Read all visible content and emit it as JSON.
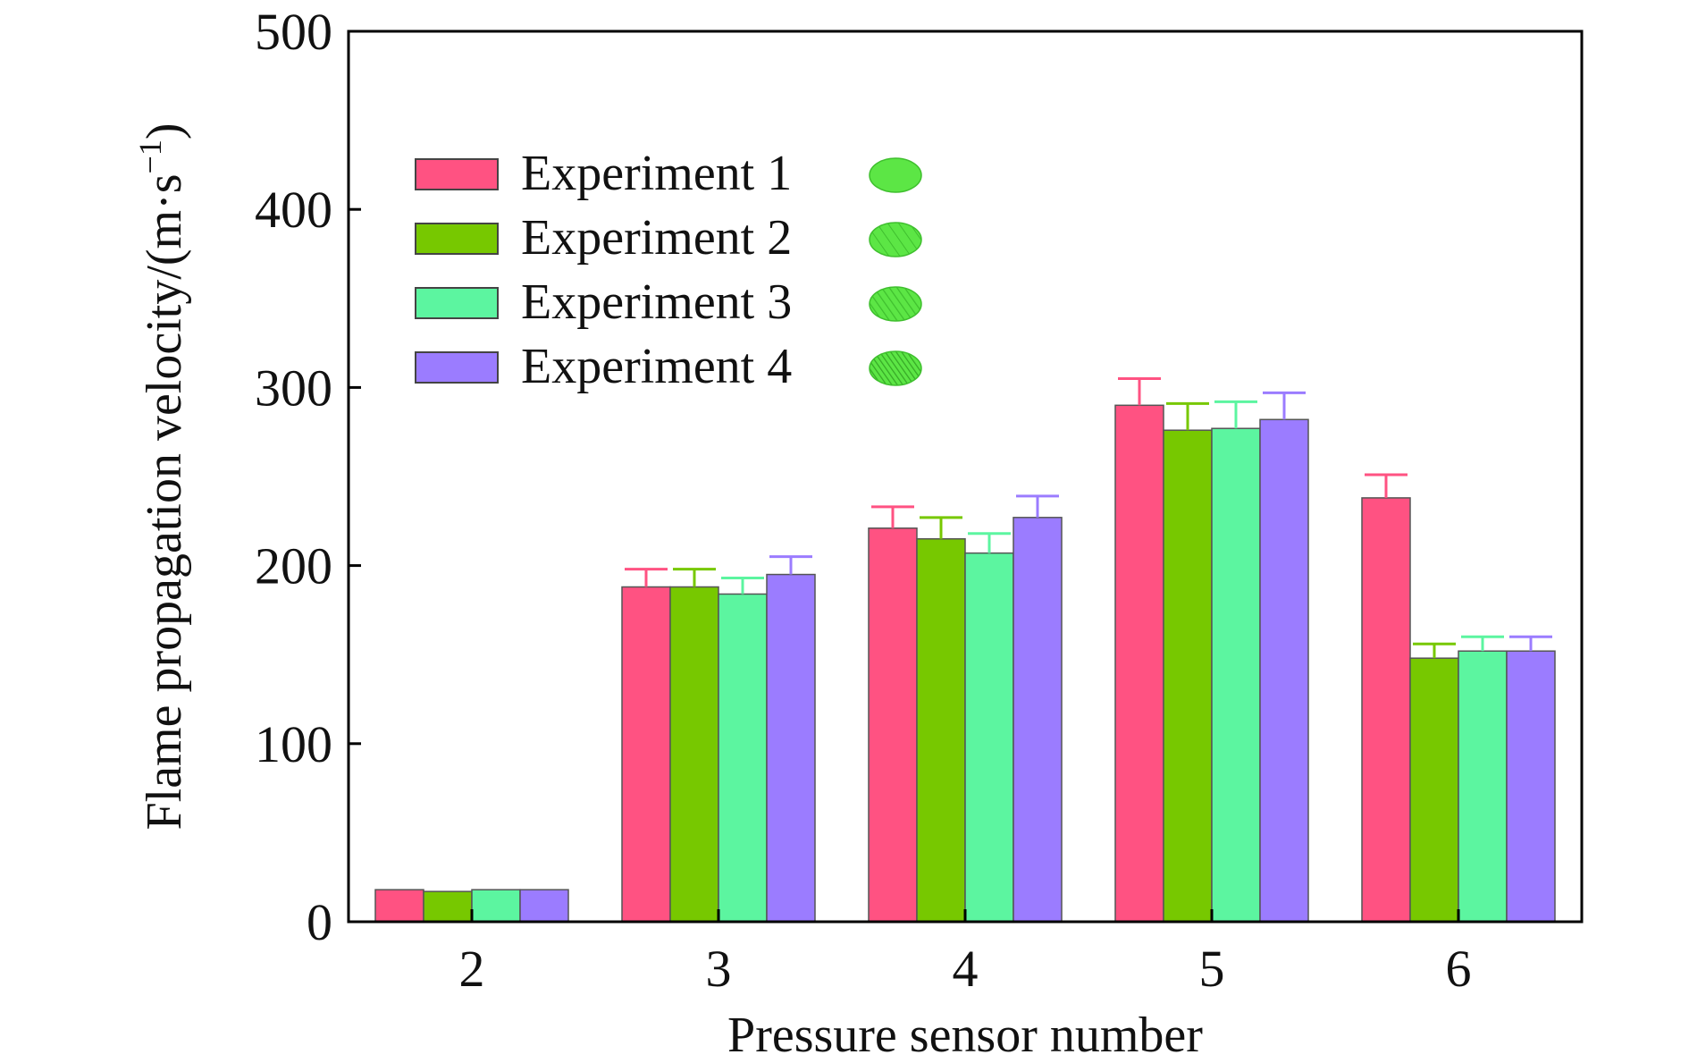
{
  "chart_data": {
    "type": "bar",
    "categories": [
      "2",
      "3",
      "4",
      "5",
      "6"
    ],
    "xlabel": "Pressure sensor number",
    "ylabel": "Flame propagation velocity/(m·s",
    "ylabel_superscript": "−1",
    "ylabel_suffix": ")",
    "ylim": [
      0,
      500
    ],
    "yticks": [
      "0",
      "100",
      "200",
      "300",
      "400",
      "500"
    ],
    "grid": false,
    "legend_position": "top-left",
    "series": [
      {
        "name": "Experiment 1",
        "color": "#ff5282",
        "values": [
          18,
          188,
          221,
          290,
          238
        ],
        "errors": [
          0,
          10,
          12,
          15,
          13
        ]
      },
      {
        "name": "Experiment 2",
        "color": "#77c800",
        "values": [
          17,
          188,
          215,
          276,
          148
        ],
        "errors": [
          0,
          10,
          12,
          15,
          8
        ]
      },
      {
        "name": "Experiment 3",
        "color": "#5cf5a0",
        "values": [
          18,
          184,
          207,
          277,
          152
        ],
        "errors": [
          0,
          9,
          11,
          15,
          8
        ]
      },
      {
        "name": "Experiment 4",
        "color": "#9b7cff",
        "values": [
          18,
          195,
          227,
          282,
          152
        ],
        "errors": [
          0,
          10,
          12,
          15,
          8
        ]
      }
    ],
    "legend_markers": [
      {
        "color": "#5ce645",
        "pattern": "solid"
      },
      {
        "color": "#5ce645",
        "pattern": "hatch-light"
      },
      {
        "color": "#5ce645",
        "pattern": "hatch-medium"
      },
      {
        "color": "#5ce645",
        "pattern": "hatch-dense"
      }
    ]
  }
}
